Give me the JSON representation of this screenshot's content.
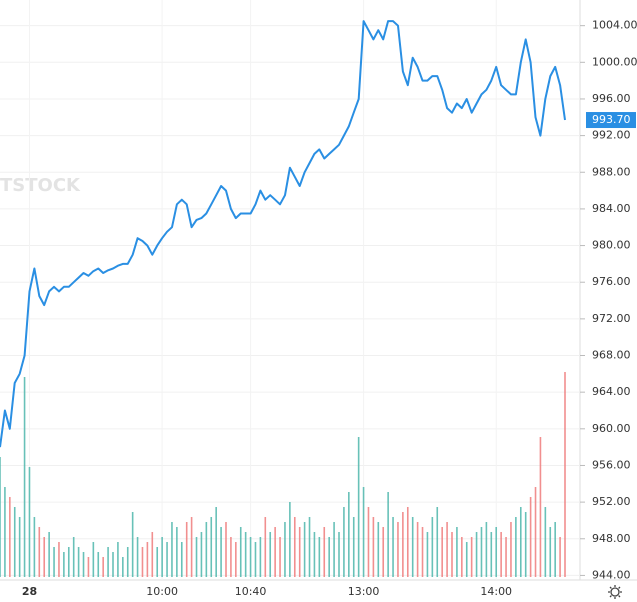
{
  "chart_data": {
    "type": "line",
    "watermark": "TSTOCK",
    "categories": [
      null,
      null,
      null,
      null,
      null,
      null,
      "28",
      null,
      null,
      null,
      null,
      null,
      null,
      null,
      null,
      null,
      null,
      null,
      null,
      null,
      null,
      null,
      null,
      null,
      null,
      null,
      null,
      null,
      null,
      null,
      null,
      null,
      null,
      "10:00",
      null,
      null,
      null,
      null,
      null,
      null,
      null,
      null,
      null,
      null,
      null,
      null,
      null,
      null,
      null,
      null,
      null,
      "10:40",
      null,
      null,
      null,
      null,
      null,
      null,
      null,
      null,
      null,
      null,
      null,
      null,
      null,
      null,
      null,
      null,
      null,
      null,
      null,
      null,
      null,
      null,
      "13:00",
      null,
      null,
      null,
      null,
      null,
      null,
      null,
      null,
      null,
      null,
      null,
      null,
      null,
      null,
      null,
      null,
      null,
      null,
      null,
      null,
      null,
      null,
      null,
      null,
      null,
      null,
      "14:00",
      null,
      null,
      null,
      null,
      null,
      null,
      null,
      null,
      null,
      null,
      null,
      null,
      null,
      null
    ],
    "series": [
      {
        "color": "#2a8fe3",
        "values": [
          958,
          962,
          960,
          965,
          966,
          968,
          975,
          977.5,
          974.5,
          973.5,
          975,
          975.5,
          975,
          975.5,
          975.5,
          976,
          976.5,
          977,
          976.7,
          977.2,
          977.5,
          977,
          977.3,
          977.5,
          977.8,
          978,
          978,
          979,
          980.8,
          980.5,
          980,
          979,
          980,
          980.8,
          981.5,
          982,
          984.5,
          985,
          984.5,
          982,
          982.8,
          983,
          983.5,
          984.5,
          985.5,
          986.5,
          986,
          984,
          983,
          983.5,
          983.5,
          983.5,
          984.5,
          986,
          985,
          985.5,
          985,
          984.5,
          985.5,
          988.5,
          987.5,
          986.5,
          988,
          989,
          990,
          990.5,
          989.5,
          990,
          990.5,
          991,
          992,
          993,
          994.5,
          996,
          1004.5,
          1003.5,
          1002.5,
          1003.5,
          1002.5,
          1004.5,
          1004.5,
          1004,
          999,
          997.5,
          1000.5,
          999.5,
          998,
          998,
          998.5,
          998.5,
          997,
          995,
          994.5,
          995.5,
          995,
          996,
          994.5,
          995.5,
          996.5,
          997,
          998,
          999.5,
          997.5,
          997,
          996.5,
          996.5,
          1000,
          1002.5,
          1000,
          994,
          992,
          996,
          998.5,
          999.5,
          997.5,
          993.7
        ]
      }
    ],
    "volume": [
      120,
      90,
      80,
      70,
      60,
      200,
      110,
      60,
      50,
      40,
      45,
      30,
      35,
      25,
      30,
      40,
      30,
      25,
      20,
      35,
      25,
      20,
      30,
      25,
      35,
      20,
      30,
      65,
      40,
      30,
      35,
      45,
      30,
      40,
      35,
      55,
      50,
      35,
      55,
      60,
      40,
      45,
      55,
      60,
      70,
      50,
      55,
      40,
      35,
      50,
      45,
      40,
      35,
      40,
      60,
      45,
      50,
      40,
      55,
      75,
      60,
      50,
      55,
      60,
      45,
      40,
      50,
      40,
      55,
      45,
      70,
      85,
      60,
      140,
      90,
      70,
      60,
      55,
      50,
      85,
      60,
      55,
      65,
      70,
      60,
      55,
      50,
      45,
      60,
      70,
      50,
      55,
      45,
      50,
      40,
      35,
      40,
      45,
      50,
      55,
      45,
      50,
      45,
      40,
      55,
      60,
      70,
      65,
      80,
      90,
      140,
      70,
      50,
      55,
      40,
      205
    ],
    "volume_colors": {
      "up": "#4db6ac",
      "down": "#ef7b7b"
    },
    "last_price": {
      "value": 993.7,
      "label": "993.70"
    },
    "ylim": [
      943.5,
      1006.8
    ],
    "yticks": [
      {
        "value": 944,
        "label": "944.00"
      },
      {
        "value": 948,
        "label": "948.00"
      },
      {
        "value": 952,
        "label": "952.00"
      },
      {
        "value": 956,
        "label": "956.00"
      },
      {
        "value": 960,
        "label": "960.00"
      },
      {
        "value": 964,
        "label": "964.00"
      },
      {
        "value": 968,
        "label": "968.00"
      },
      {
        "value": 972,
        "label": "972.00"
      },
      {
        "value": 976,
        "label": "976.00"
      },
      {
        "value": 980,
        "label": "980.00"
      },
      {
        "value": 984,
        "label": "984.00"
      },
      {
        "value": 988,
        "label": "988.00"
      },
      {
        "value": 992,
        "label": "992.00"
      },
      {
        "value": 996,
        "label": "996.00"
      },
      {
        "value": 1000,
        "label": "1000.00"
      },
      {
        "value": 1004,
        "label": "1004.00"
      }
    ],
    "grid": true
  }
}
